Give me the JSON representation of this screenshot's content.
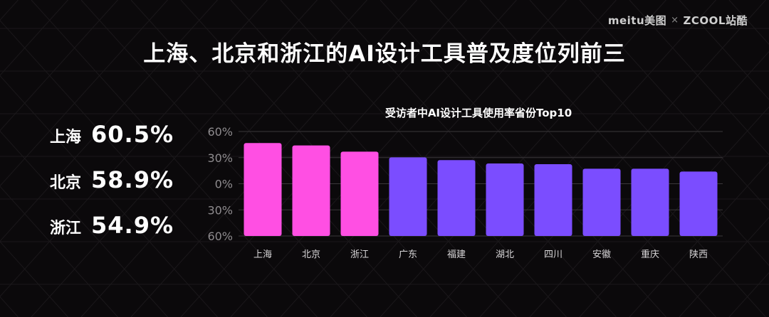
{
  "brand": {
    "left": "meitu美图",
    "separator": "×",
    "right": "ZCOOL站酷"
  },
  "title": "上海、北京和浙江的AI设计工具普及度位列前三",
  "highlights": [
    {
      "region": "上海",
      "value": "60.5%"
    },
    {
      "region": "北京",
      "value": "58.9%"
    },
    {
      "region": "浙江",
      "value": "54.9%"
    }
  ],
  "colors": {
    "highlight": "#ff4fe3",
    "normal": "#7b4dff",
    "background": "#0b090b"
  },
  "chart_data": {
    "type": "bar",
    "title": "受访者中AI设计工具使用率省份Top10",
    "categories": [
      "上海",
      "北京",
      "浙江",
      "广东",
      "福建",
      "湖北",
      "四川",
      "安徽",
      "重庆",
      "陕西"
    ],
    "values": [
      60.5,
      58.9,
      54.9,
      51.2,
      49.4,
      47.2,
      46.7,
      43.8,
      43.8,
      41.9
    ],
    "highlighted": [
      true,
      true,
      true,
      false,
      false,
      false,
      false,
      false,
      false,
      false
    ],
    "yticks": [
      "60%",
      "30%",
      "0%",
      "30%",
      "60%"
    ],
    "ylim": [
      0,
      68
    ],
    "xlabel": "",
    "ylabel": "",
    "grid": true
  }
}
